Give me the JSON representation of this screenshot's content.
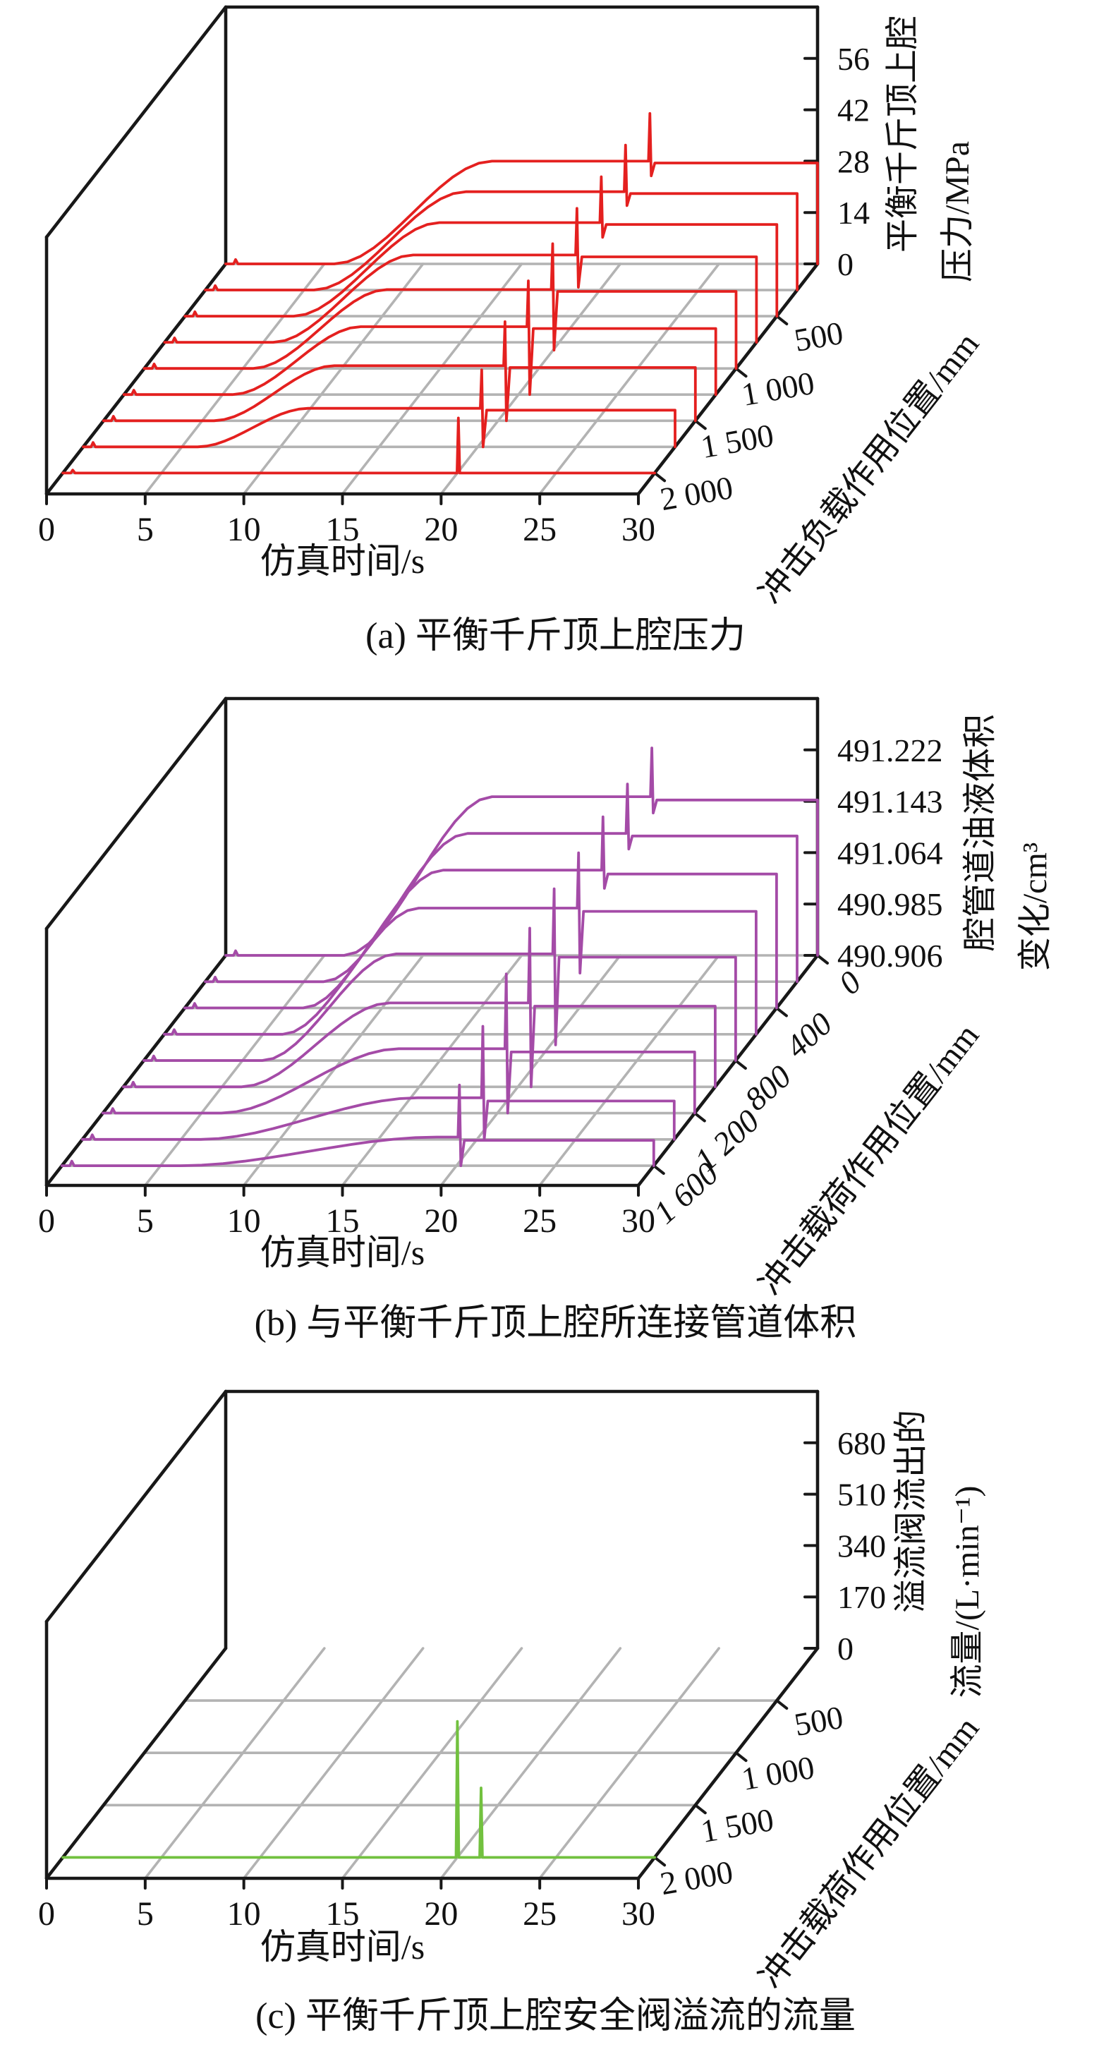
{
  "figure": {
    "captions": {
      "a": "(a) 平衡千斤顶上腔压力",
      "b": "(b) 与平衡千斤顶上腔所连接管道体积",
      "c": "(c) 平衡千斤顶上腔安全阀溢流的流量"
    }
  },
  "chart_data": [
    {
      "id": "a",
      "type": "line",
      "subtype": "3d-waterfall",
      "title": "(a) 平衡千斤顶上腔压力",
      "xlabel": "仿真时间/s",
      "x_range": [
        0,
        30
      ],
      "x_ticks": [
        0,
        5,
        10,
        15,
        20,
        25,
        30
      ],
      "x_tick_labels": [
        "0",
        "5",
        "10",
        "15",
        "20",
        "25",
        "30"
      ],
      "ylabel": "冲击负载作用位置/mm",
      "y_ticks": [
        500,
        1000,
        1500,
        2000
      ],
      "y_tick_labels": [
        "500",
        "1 000",
        "1 500",
        "2 000"
      ],
      "y_axis_back_value": 0,
      "y_axis_front_value": 2200,
      "zlabel_line1": "平衡千斤顶上腔",
      "zlabel_line2": "压力/MPa",
      "z_range": [
        0,
        70
      ],
      "z_ticks": [
        0,
        14,
        28,
        42,
        56
      ],
      "z_tick_labels": [
        "0",
        "14",
        "28",
        "42",
        "56"
      ],
      "line_color": "#e4201f",
      "grid_color": "#b3b3b3",
      "grid": true,
      "legend": "none",
      "series": [
        {
          "position_mm": 0,
          "rise_s": [
            5.5,
            13.5
          ],
          "plateau": 28,
          "blip": 1.2,
          "spikes": [
            {
              "t": 21.5,
              "peak": 41,
              "dip": 24,
              "settle": 27.5
            }
          ]
        },
        {
          "position_mm": 250,
          "rise_s": [
            5.5,
            13.2
          ],
          "plateau": 26.8,
          "blip": 1.2,
          "spikes": [
            {
              "t": 21.3,
              "peak": 39.5,
              "dip": 23,
              "settle": 26.3
            }
          ]
        },
        {
          "position_mm": 500,
          "rise_s": [
            5.5,
            12.9
          ],
          "plateau": 25.5,
          "blip": 1.2,
          "spikes": [
            {
              "t": 21.1,
              "peak": 38,
              "dip": 21.5,
              "settle": 25
            }
          ]
        },
        {
          "position_mm": 750,
          "rise_s": [
            5.5,
            12.6
          ],
          "plateau": 23.8,
          "blip": 1.2,
          "spikes": [
            {
              "t": 20.9,
              "peak": 36.5,
              "dip": 15,
              "settle": 23.3
            }
          ]
        },
        {
          "position_mm": 1000,
          "rise_s": [
            5.5,
            12.3
          ],
          "plateau": 21.5,
          "blip": 1.2,
          "spikes": [
            {
              "t": 20.7,
              "peak": 34,
              "dip": 5,
              "settle": 21
            }
          ]
        },
        {
          "position_mm": 1250,
          "rise_s": [
            5.5,
            12.0
          ],
          "plateau": 18.5,
          "blip": 1.2,
          "spikes": [
            {
              "t": 20.5,
              "peak": 31,
              "dip": 0,
              "settle": 18
            }
          ]
        },
        {
          "position_mm": 1500,
          "rise_s": [
            5.6,
            11.7
          ],
          "plateau": 15,
          "blip": 1.2,
          "spikes": [
            {
              "t": 20.35,
              "peak": 27,
              "dip": 0,
              "settle": 14.5
            }
          ]
        },
        {
          "position_mm": 1750,
          "rise_s": [
            5.8,
            11.4
          ],
          "plateau": 10.5,
          "blip": 1.2,
          "spikes": [
            {
              "t": 20.2,
              "peak": 21,
              "dip": 0,
              "settle": 10
            }
          ]
        },
        {
          "position_mm": 2000,
          "plateau": 0,
          "blip": 0.8,
          "spikes": [
            {
              "t": 20.05,
              "peak": 15,
              "dip": 0,
              "settle": 0
            }
          ]
        }
      ]
    },
    {
      "id": "b",
      "type": "line",
      "subtype": "3d-waterfall",
      "title": "(b) 与平衡千斤顶上腔所连接管道体积",
      "xlabel": "仿真时间/s",
      "x_range": [
        0,
        30
      ],
      "x_ticks": [
        0,
        5,
        10,
        15,
        20,
        25,
        30
      ],
      "x_tick_labels": [
        "0",
        "5",
        "10",
        "15",
        "20",
        "25",
        "30"
      ],
      "ylabel": "冲击载荷作用位置/mm",
      "y_ticks": [
        0,
        400,
        800,
        1200,
        1600
      ],
      "y_tick_labels": [
        "0",
        "400",
        "800",
        "1 200",
        "1 600"
      ],
      "y_axis_back_value": 0,
      "y_axis_front_value": 1750,
      "zlabel_line1": "腔管道油液体积",
      "zlabel_line2": "变化/cm³",
      "z_range": [
        490.906,
        491.301
      ],
      "z_ticks": [
        490.906,
        490.985,
        491.064,
        491.143,
        491.222
      ],
      "z_tick_labels": [
        "490.906",
        "490.985",
        "491.064",
        "491.143",
        "491.222"
      ],
      "line_color": "#a44ba7",
      "grid_color": "#b3b3b3",
      "grid": true,
      "legend": "none",
      "series": [
        {
          "position_mm": 0,
          "rise_s": [
            6,
            13.5
          ],
          "plateau": 491.15,
          "blip": 0.007,
          "spikes": [
            {
              "t": 21.6,
              "peak": 491.225,
              "dip": 491.125,
              "settle": 491.145
            }
          ]
        },
        {
          "position_mm": 200,
          "rise_s": [
            6,
            13.3
          ],
          "plateau": 491.134,
          "blip": 0.007,
          "spikes": [
            {
              "t": 21.4,
              "peak": 491.21,
              "dip": 491.11,
              "settle": 491.13
            }
          ]
        },
        {
          "position_mm": 400,
          "rise_s": [
            6,
            13.1
          ],
          "plateau": 491.118,
          "blip": 0.007,
          "spikes": [
            {
              "t": 21.2,
              "peak": 491.2,
              "dip": 491.09,
              "settle": 491.112
            }
          ]
        },
        {
          "position_mm": 600,
          "rise_s": [
            6,
            12.9
          ],
          "plateau": 491.1,
          "blip": 0.007,
          "spikes": [
            {
              "t": 21.0,
              "peak": 491.185,
              "dip": 491.0,
              "settle": 491.095
            }
          ]
        },
        {
          "position_mm": 800,
          "rise_s": [
            6,
            12.8
          ],
          "plateau": 491.07,
          "blip": 0.007,
          "spikes": [
            {
              "t": 20.8,
              "peak": 491.17,
              "dip": 490.93,
              "settle": 491.065
            }
          ]
        },
        {
          "position_mm": 1000,
          "rise_s": [
            6,
            13.5
          ],
          "plateau": 491.035,
          "blip": 0.007,
          "spikes": [
            {
              "t": 20.6,
              "peak": 491.15,
              "dip": 490.906,
              "settle": 491.03
            }
          ]
        },
        {
          "position_mm": 1200,
          "rise_s": [
            6,
            15
          ],
          "plateau": 491.005,
          "blip": 0.007,
          "spikes": [
            {
              "t": 20.45,
              "peak": 491.12,
              "dip": 490.906,
              "settle": 491.0
            }
          ]
        },
        {
          "position_mm": 1400,
          "rise_s": [
            6,
            17
          ],
          "plateau": 490.97,
          "blip": 0.007,
          "spikes": [
            {
              "t": 20.3,
              "peak": 491.08,
              "dip": 490.906,
              "settle": 490.965
            }
          ]
        },
        {
          "position_mm": 1600,
          "rise_s": [
            6,
            19
          ],
          "plateau": 490.95,
          "blip": 0.007,
          "spikes": [
            {
              "t": 20.15,
              "peak": 491.03,
              "dip": 490.906,
              "settle": 490.945
            }
          ]
        }
      ]
    },
    {
      "id": "c",
      "type": "line",
      "subtype": "3d-waterfall",
      "title": "(c) 平衡千斤顶上腔安全阀溢流的流量",
      "xlabel": "仿真时间/s",
      "x_range": [
        0,
        30
      ],
      "x_ticks": [
        0,
        5,
        10,
        15,
        20,
        25,
        30
      ],
      "x_tick_labels": [
        "0",
        "5",
        "10",
        "15",
        "20",
        "25",
        "30"
      ],
      "ylabel": "冲击载荷作用位置/mm",
      "y_ticks": [
        500,
        1000,
        1500,
        2000
      ],
      "y_tick_labels": [
        "500",
        "1 000",
        "1 500",
        "2 000"
      ],
      "y_axis_back_value": 0,
      "y_axis_front_value": 2200,
      "zlabel_line1": "溢流阀流出的",
      "zlabel_line2": "流量/(L·min⁻¹)",
      "z_range": [
        0,
        850
      ],
      "z_ticks": [
        0,
        170,
        340,
        510,
        680
      ],
      "z_tick_labels": [
        "0",
        "170",
        "340",
        "510",
        "680"
      ],
      "line_color": "#72c13f",
      "grid_color": "#b3b3b3",
      "grid": true,
      "legend": "none",
      "floor_rows_at_ticks": true,
      "series": [
        {
          "position_mm": 2000,
          "plateau": 0,
          "spikes": [
            {
              "t": 20.0,
              "peak": 450,
              "dip": 0,
              "settle": 0
            },
            {
              "t": 21.2,
              "peak": 230,
              "dip": 0,
              "settle": 0
            }
          ]
        }
      ]
    }
  ]
}
